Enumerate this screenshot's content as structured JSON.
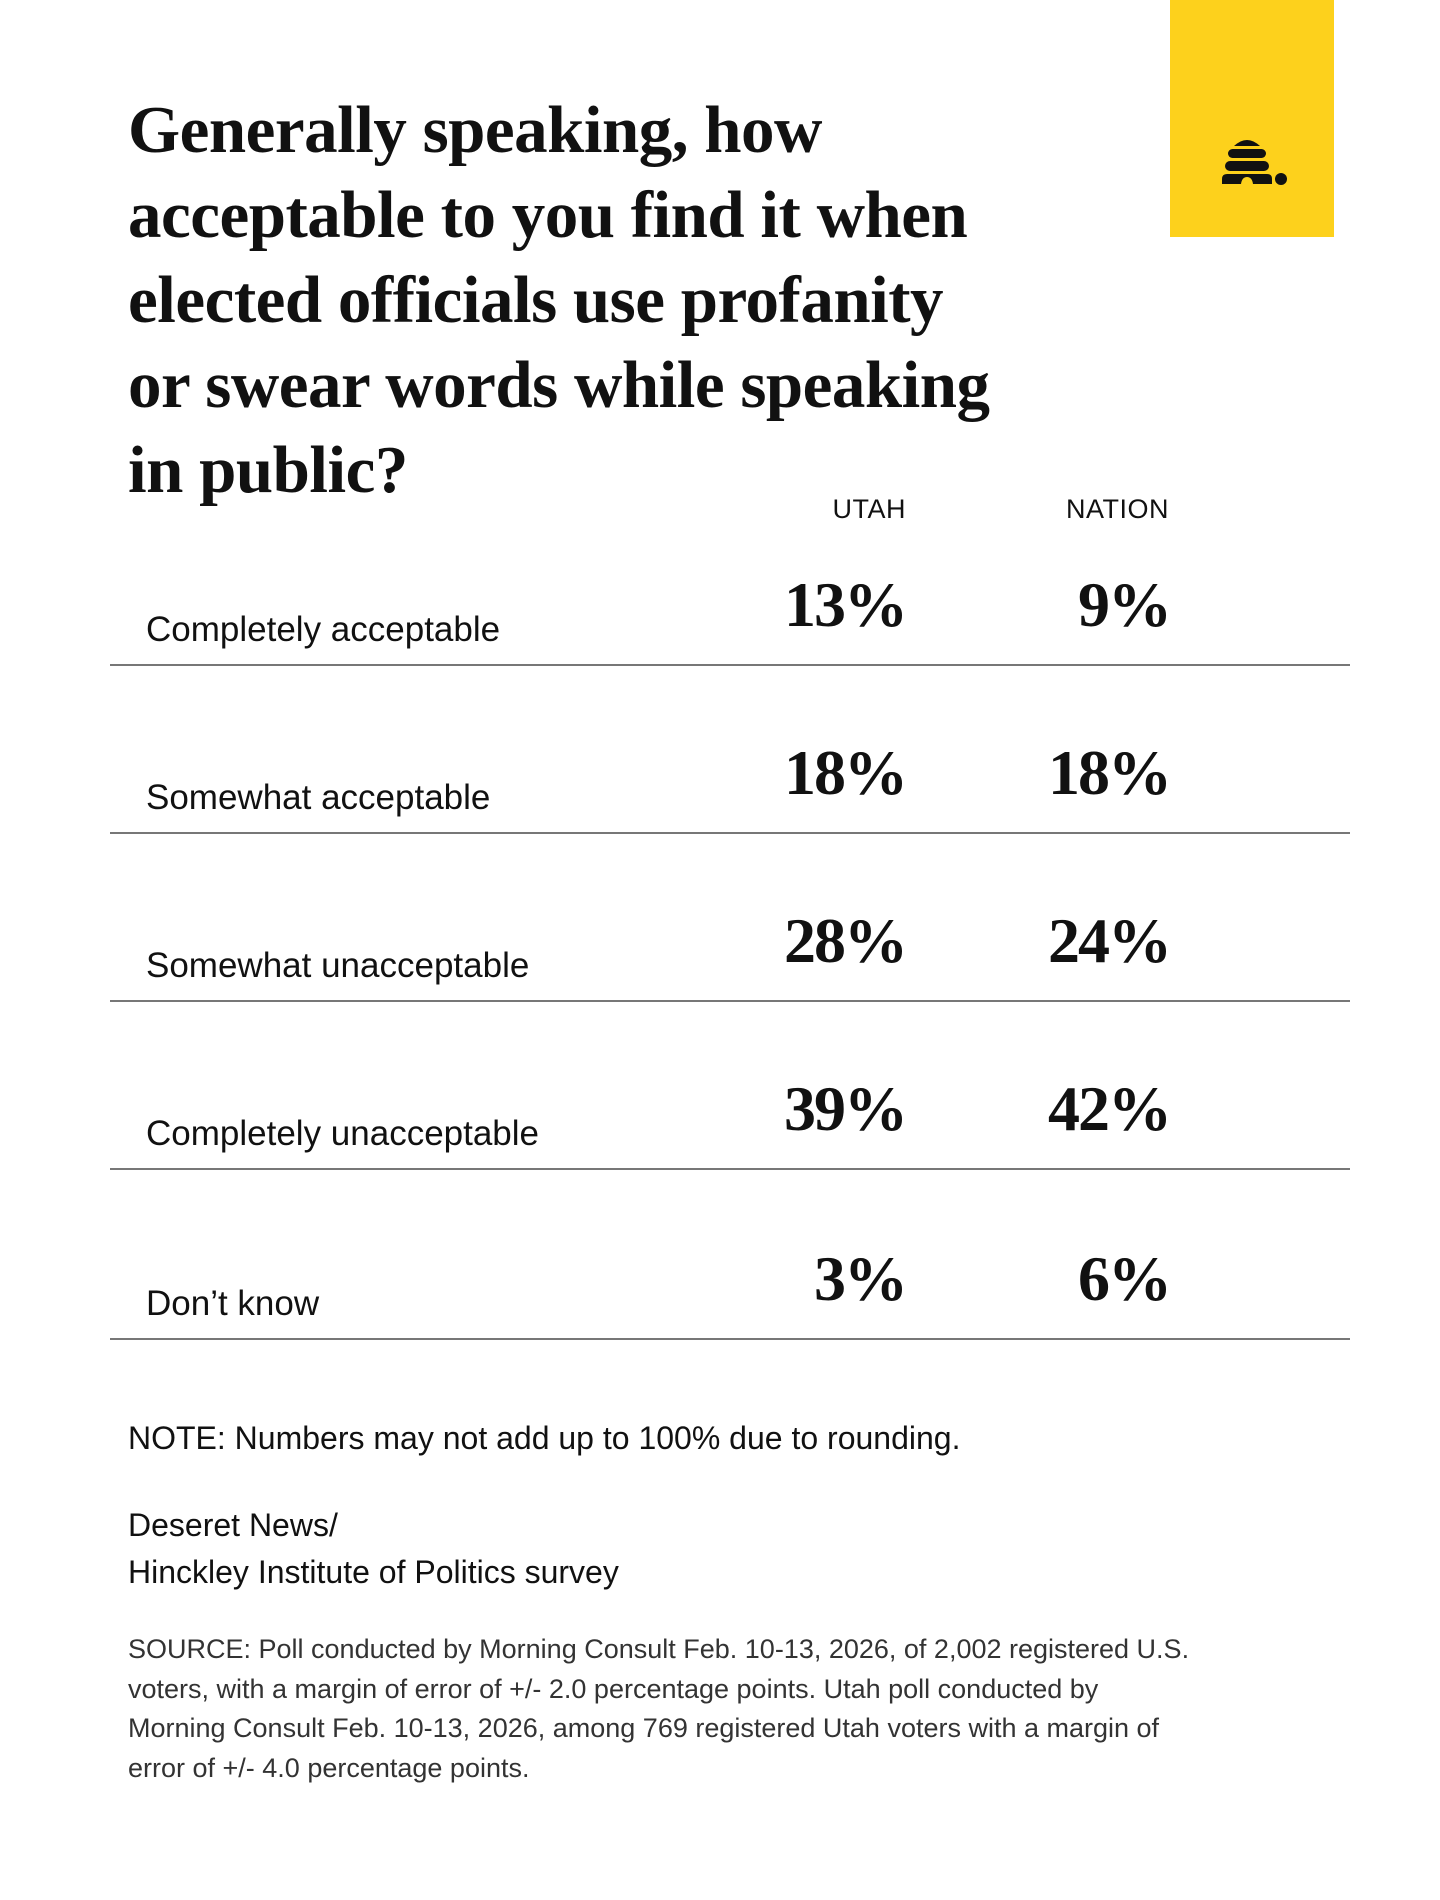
{
  "logo": {
    "name": "beehive-logo",
    "color": "#fdd11c"
  },
  "title_lines": [
    "Generally speaking, how",
    "acceptable to you find it when",
    "elected officials use profanity",
    "or swear words while speaking",
    "in public?"
  ],
  "columns": {
    "utah": "UTAH",
    "nation": "NATION"
  },
  "rows": [
    {
      "label": "Completely acceptable",
      "utah": "13%",
      "nation": "9%"
    },
    {
      "label": "Somewhat acceptable",
      "utah": "18%",
      "nation": "18%"
    },
    {
      "label": "Somewhat unacceptable",
      "utah": "28%",
      "nation": "24%"
    },
    {
      "label": "Completely unacceptable",
      "utah": "39%",
      "nation": "42%"
    },
    {
      "label": "Don’t know",
      "utah": "3%",
      "nation": "6%"
    }
  ],
  "note": "NOTE: Numbers may not add up to 100% due to rounding.",
  "credit_lines": [
    "Deseret News/",
    "Hinckley Institute of Politics survey"
  ],
  "source_lines": [
    "SOURCE: Poll conducted by Morning Consult Feb. 10-13, 2026, of 2,002 registered U.S.",
    "voters, with a margin of error of +/- 2.0 percentage points. Utah poll conducted by",
    "Morning Consult Feb. 10-13, 2026, among 769 registered Utah voters with a margin of",
    "error of +/- 4.0 percentage points."
  ]
}
